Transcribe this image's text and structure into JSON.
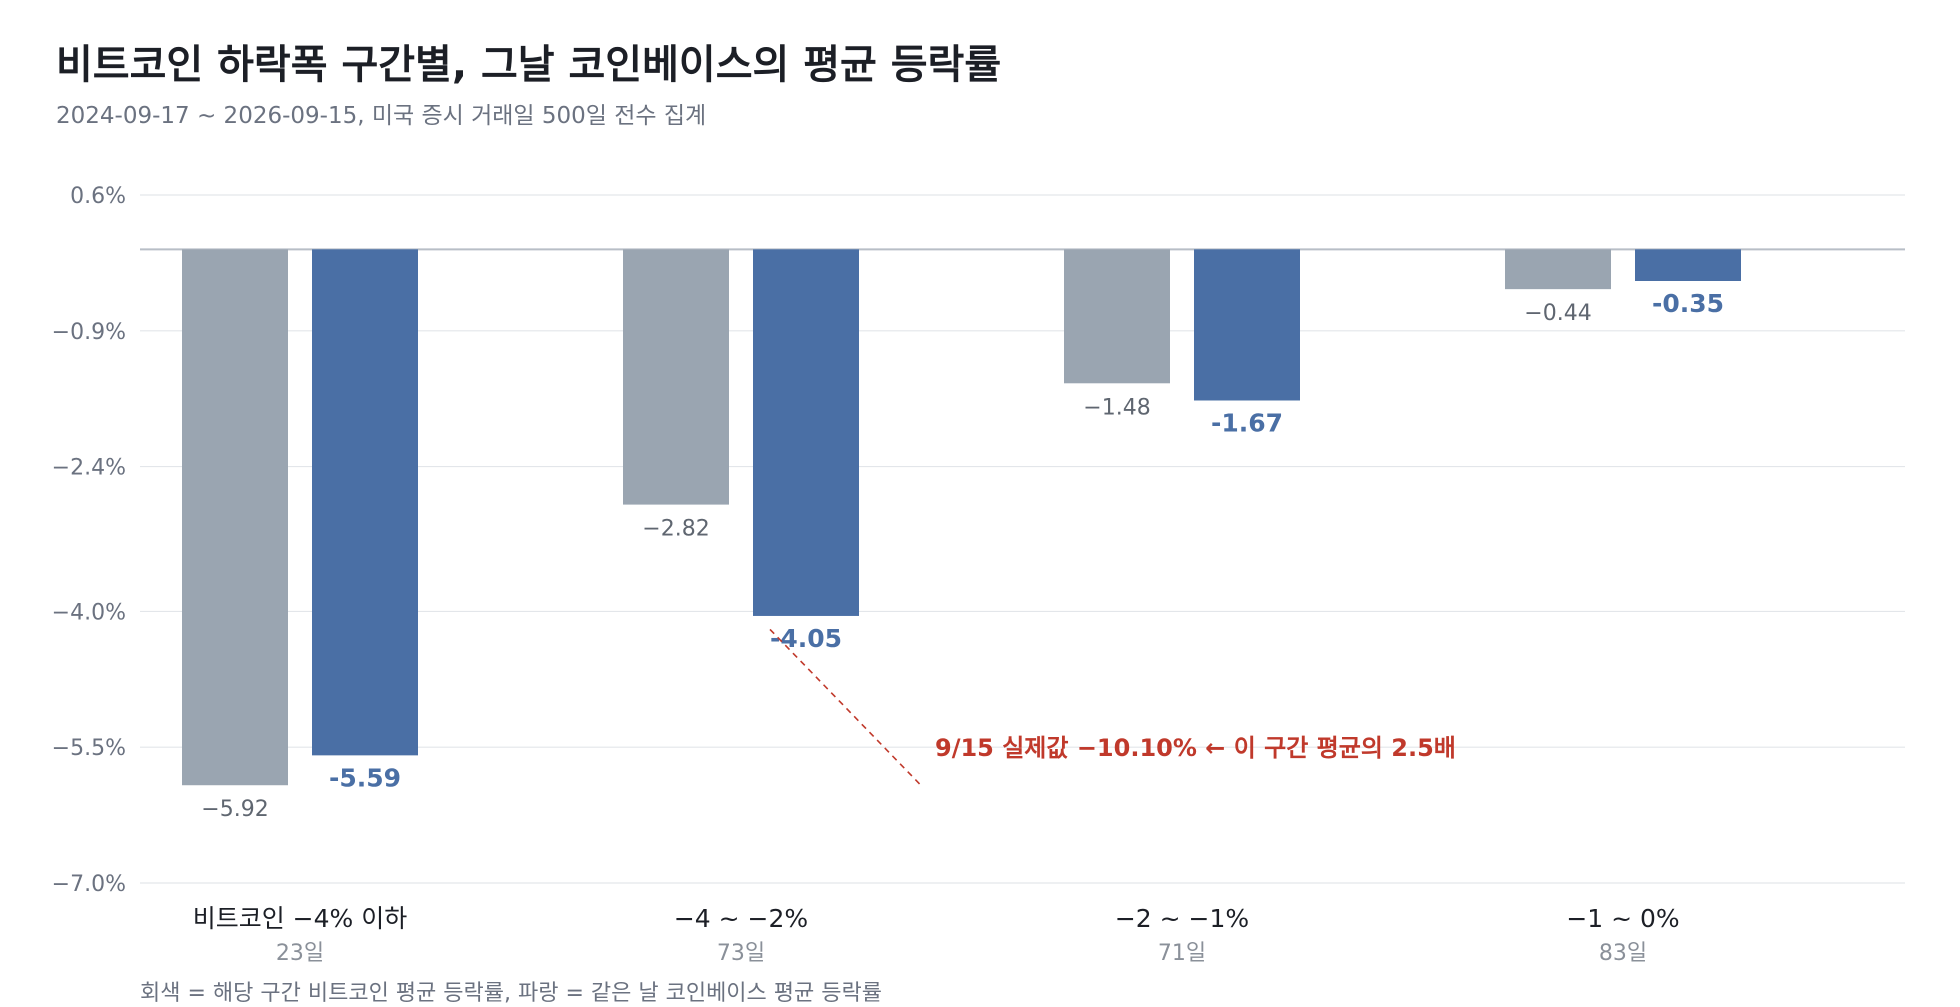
{
  "header": {
    "title": "비트코인 하락폭 구간별, 그날 코인베이스의 평균 등락률",
    "subtitle": "2024-09-17 ~ 2026-09-15, 미국 증시 거래일 500일 전수 집계"
  },
  "footnote": "회색 = 해당 구간 비트코인 평균 등락률, 파랑 = 같은 날 코인베이스 평균 등락률",
  "colors": {
    "btc": "#9aa5b1",
    "coin": "#4a6fa5",
    "annotation": "#c0392b",
    "grid": "#e3e6ea",
    "baseline": "#b8bec6"
  },
  "chart_data": {
    "type": "bar",
    "title": "비트코인 하락폭 구간별, 그날 코인베이스의 평균 등락률",
    "subtitle": "2024-09-17 ~ 2026-09-15, 미국 증시 거래일 500일 전수 집계",
    "categories": [
      "비트코인 −4% 이하",
      "−4 ~ −2%",
      "−2 ~ −1%",
      "−1 ~ 0%"
    ],
    "category_counts": [
      "23일",
      "73일",
      "71일",
      "83일"
    ],
    "series": [
      {
        "values": [
          -5.92,
          -2.82,
          -1.48,
          -0.44
        ],
        "labels": [
          "−5.92",
          "−2.82",
          "−1.48",
          "−0.44"
        ],
        "color": "#9aa5b1"
      },
      {
        "values": [
          -5.59,
          -4.05,
          -1.67,
          -0.35
        ],
        "labels": [
          "-5.59",
          "-4.05",
          "-1.67",
          "-0.35"
        ],
        "color": "#4a6fa5"
      }
    ],
    "yticks": [
      "0.6%",
      "−0.9%",
      "−2.4%",
      "−4.0%",
      "−5.5%",
      "−7.0%"
    ],
    "ytick_values": [
      0.6,
      -0.9,
      -2.4,
      -4.0,
      -5.5,
      -7.0
    ],
    "ylim": [
      -7.0,
      0.6
    ],
    "grid": true,
    "annotation": {
      "text": "9/15 실제값 −10.10%  ← 이 구간 평균의 2.5배",
      "category_index": 1,
      "series_index": 1
    }
  }
}
